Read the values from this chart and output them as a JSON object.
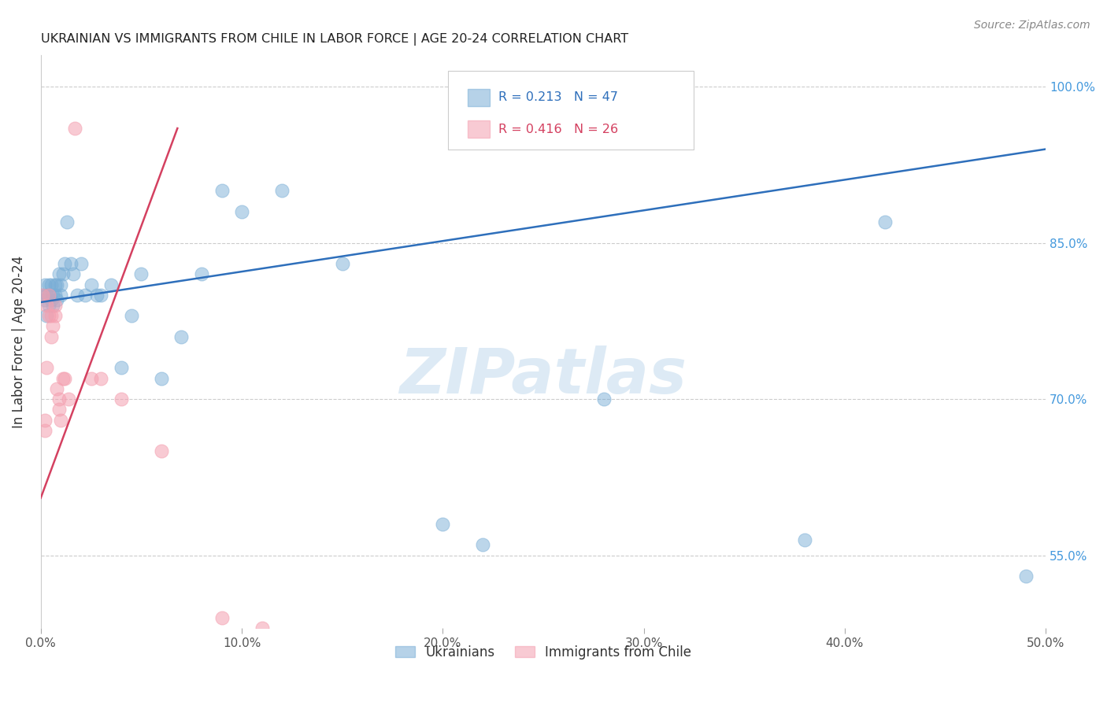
{
  "title": "UKRAINIAN VS IMMIGRANTS FROM CHILE IN LABOR FORCE | AGE 20-24 CORRELATION CHART",
  "source": "Source: ZipAtlas.com",
  "ylabel": "In Labor Force | Age 20-24",
  "xlim": [
    0.0,
    0.5
  ],
  "ylim": [
    0.48,
    1.03
  ],
  "xticks": [
    0.0,
    0.1,
    0.2,
    0.3,
    0.4,
    0.5
  ],
  "xtick_labels": [
    "0.0%",
    "10.0%",
    "20.0%",
    "30.0%",
    "40.0%",
    "50.0%"
  ],
  "yticks_right": [
    0.55,
    0.7,
    0.85,
    1.0
  ],
  "ytick_labels_right": [
    "55.0%",
    "70.0%",
    "85.0%",
    "100.0%"
  ],
  "blue_color": "#7aaed6",
  "pink_color": "#f4a0b0",
  "blue_line_color": "#2e6fbb",
  "pink_line_color": "#d44060",
  "blue_R": 0.213,
  "blue_N": 47,
  "pink_R": 0.416,
  "pink_N": 26,
  "watermark": "ZIPatlas",
  "legend_label_blue": "Ukrainians",
  "legend_label_pink": "Immigrants from Chile",
  "blue_x": [
    0.001,
    0.002,
    0.002,
    0.003,
    0.003,
    0.004,
    0.004,
    0.004,
    0.005,
    0.005,
    0.006,
    0.006,
    0.007,
    0.007,
    0.008,
    0.008,
    0.009,
    0.01,
    0.01,
    0.011,
    0.012,
    0.013,
    0.015,
    0.016,
    0.018,
    0.02,
    0.022,
    0.025,
    0.028,
    0.03,
    0.035,
    0.04,
    0.045,
    0.05,
    0.06,
    0.07,
    0.08,
    0.09,
    0.1,
    0.12,
    0.15,
    0.2,
    0.22,
    0.28,
    0.38,
    0.42,
    0.49
  ],
  "blue_y": [
    0.8,
    0.81,
    0.795,
    0.78,
    0.8,
    0.79,
    0.81,
    0.8,
    0.795,
    0.81,
    0.8,
    0.79,
    0.81,
    0.8,
    0.795,
    0.81,
    0.82,
    0.8,
    0.81,
    0.82,
    0.83,
    0.87,
    0.83,
    0.82,
    0.8,
    0.83,
    0.8,
    0.81,
    0.8,
    0.8,
    0.81,
    0.73,
    0.78,
    0.82,
    0.72,
    0.76,
    0.82,
    0.9,
    0.88,
    0.9,
    0.83,
    0.58,
    0.56,
    0.7,
    0.565,
    0.87,
    0.53
  ],
  "pink_x": [
    0.001,
    0.002,
    0.002,
    0.003,
    0.003,
    0.004,
    0.004,
    0.005,
    0.005,
    0.006,
    0.007,
    0.007,
    0.008,
    0.009,
    0.009,
    0.01,
    0.011,
    0.012,
    0.014,
    0.017,
    0.025,
    0.03,
    0.04,
    0.06,
    0.09,
    0.11
  ],
  "pink_y": [
    0.8,
    0.67,
    0.68,
    0.79,
    0.73,
    0.8,
    0.78,
    0.78,
    0.76,
    0.77,
    0.79,
    0.78,
    0.71,
    0.7,
    0.69,
    0.68,
    0.72,
    0.72,
    0.7,
    0.96,
    0.72,
    0.72,
    0.7,
    0.65,
    0.49,
    0.48
  ],
  "blue_line_x0": 0.0,
  "blue_line_x1": 0.5,
  "blue_line_y0": 0.793,
  "blue_line_y1": 0.94,
  "pink_line_x0": 0.0,
  "pink_line_x1": 0.068,
  "pink_line_y0": 0.605,
  "pink_line_y1": 0.96
}
